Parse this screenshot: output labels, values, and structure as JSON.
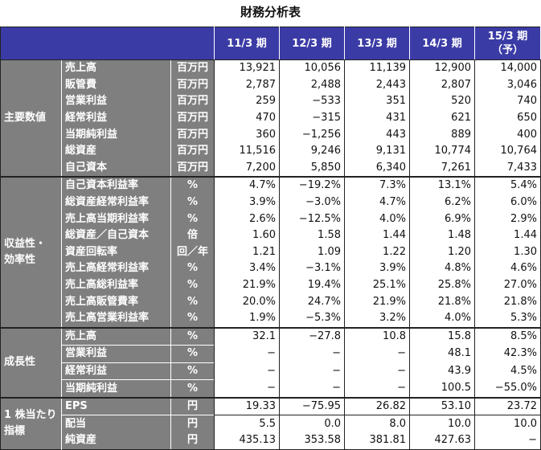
{
  "title": "財務分析表",
  "header": {
    "columns": [
      "11/3 期",
      "12/3 期",
      "13/3 期",
      "14/3 期",
      "15/3 期",
      "（予）"
    ]
  },
  "colors": {
    "header_bg": "#3b3ba6",
    "label_bg": "#7f7f7f"
  },
  "sections": [
    {
      "group": "主要数値",
      "rows": [
        {
          "item": "売上高",
          "unit": "百万円",
          "values": [
            "13,921",
            "10,056",
            "11,139",
            "12,900",
            "14,000"
          ]
        },
        {
          "item": "販管費",
          "unit": "百万円",
          "values": [
            "2,787",
            "2,488",
            "2,443",
            "2,807",
            "3,046"
          ]
        },
        {
          "item": "営業利益",
          "unit": "百万円",
          "values": [
            "259",
            "−533",
            "351",
            "520",
            "740"
          ]
        },
        {
          "item": "経常利益",
          "unit": "百万円",
          "values": [
            "470",
            "−315",
            "431",
            "621",
            "650"
          ]
        },
        {
          "item": "当期純利益",
          "unit": "百万円",
          "values": [
            "360",
            "−1,256",
            "443",
            "889",
            "400"
          ]
        },
        {
          "item": "総資産",
          "unit": "百万円",
          "values": [
            "11,516",
            "9,246",
            "9,131",
            "10,774",
            "10,764"
          ]
        },
        {
          "item": "自己資本",
          "unit": "百万円",
          "values": [
            "7,200",
            "5,850",
            "6,340",
            "7,261",
            "7,433"
          ]
        }
      ]
    },
    {
      "group": "収益性・効率性",
      "group_lines": [
        "収益性・",
        "効率性"
      ],
      "rows": [
        {
          "item": "自己資本利益率",
          "unit": "%",
          "values": [
            "4.7%",
            "−19.2%",
            "7.3%",
            "13.1%",
            "5.4%"
          ]
        },
        {
          "item": "総資産経常利益率",
          "unit": "%",
          "values": [
            "3.9%",
            "−3.0%",
            "4.7%",
            "6.2%",
            "6.0%"
          ]
        },
        {
          "item": "売上高当期利益率",
          "unit": "%",
          "values": [
            "2.6%",
            "−12.5%",
            "4.0%",
            "6.9%",
            "2.9%"
          ]
        },
        {
          "item": "総資産／自己資本",
          "unit": "倍",
          "values": [
            "1.60",
            "1.58",
            "1.44",
            "1.48",
            "1.44"
          ]
        },
        {
          "item": "資産回転率",
          "unit": "回／年",
          "values": [
            "1.21",
            "1.09",
            "1.22",
            "1.20",
            "1.30"
          ]
        },
        {
          "item": "売上高経常利益率",
          "unit": "%",
          "values": [
            "3.4%",
            "−3.1%",
            "3.9%",
            "4.8%",
            "4.6%"
          ]
        },
        {
          "item": "売上高総利益率",
          "unit": "%",
          "values": [
            "21.9%",
            "19.4%",
            "25.1%",
            "25.8%",
            "27.0%"
          ]
        },
        {
          "item": "売上高販管費率",
          "unit": "%",
          "values": [
            "20.0%",
            "24.7%",
            "21.9%",
            "21.8%",
            "21.8%"
          ]
        },
        {
          "item": "売上高営業利益率",
          "unit": "%",
          "values": [
            "1.9%",
            "−5.3%",
            "3.2%",
            "4.0%",
            "5.3%"
          ]
        }
      ]
    },
    {
      "group": "成長性",
      "rows": [
        {
          "item": "売上高",
          "unit": "%",
          "values": [
            "32.1",
            "−27.8",
            "10.8",
            "15.8",
            "8.5%"
          ]
        },
        {
          "item": "営業利益",
          "unit": "%",
          "values": [
            "−",
            "−",
            "−",
            "48.1",
            "42.3%"
          ]
        },
        {
          "item": "経常利益",
          "unit": "%",
          "values": [
            "−",
            "−",
            "−",
            "43.9",
            "4.5%"
          ]
        },
        {
          "item": "当期純利益",
          "unit": "%",
          "values": [
            "−",
            "−",
            "−",
            "100.5",
            "−55.0%"
          ]
        }
      ]
    },
    {
      "group": "1株当たり指標",
      "group_lines": [
        "1 株当たり",
        "指標"
      ],
      "rows": [
        {
          "item": "EPS",
          "unit": "円",
          "values": [
            "19.33",
            "−75.95",
            "26.82",
            "53.10",
            "23.72"
          ]
        },
        {
          "item": "配当",
          "unit": "円",
          "values": [
            "5.5",
            "0.0",
            "8.0",
            "10.0",
            "10.0"
          ]
        },
        {
          "item": "純資産",
          "unit": "円",
          "values": [
            "435.13",
            "353.58",
            "381.81",
            "427.63",
            "−"
          ]
        }
      ]
    }
  ]
}
